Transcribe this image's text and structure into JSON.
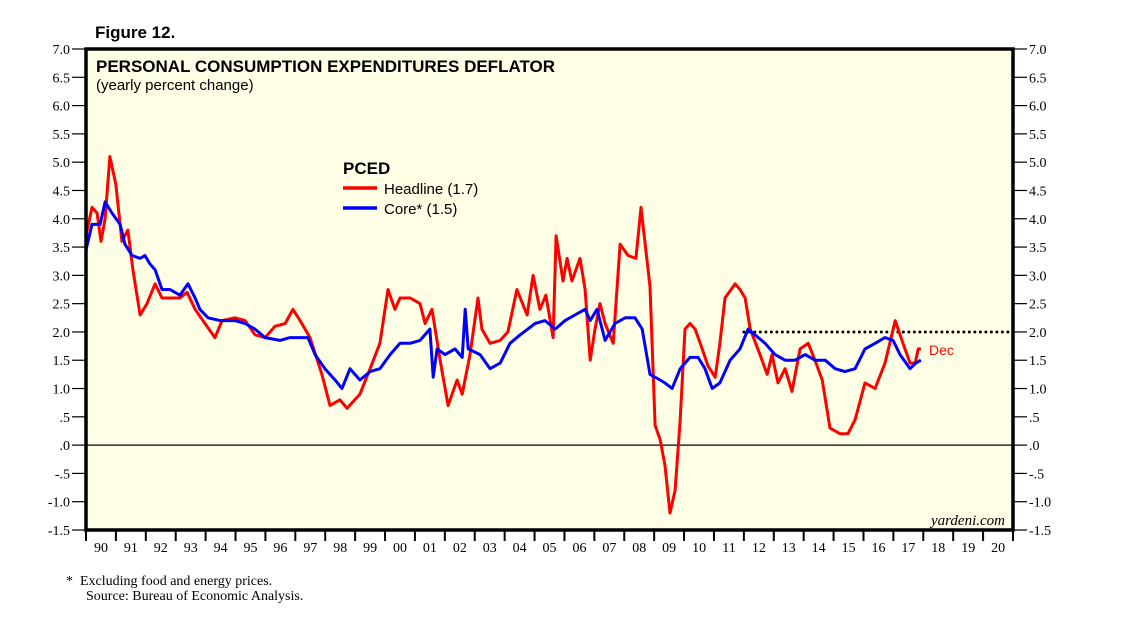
{
  "figure_label": "Figure 12.",
  "footnote": "*  Excluding food and energy prices.",
  "source": "Source: Bureau of Economic Analysis.",
  "watermark": "yardeni.com",
  "chart_data": {
    "type": "line",
    "title": "PERSONAL CONSUMPTION EXPENDITURES DEFLATOR",
    "subtitle": "(yearly percent change)",
    "legend_title": "PCED",
    "legend_placement": "upper-center",
    "background": "#FFFFE6",
    "xlim": [
      1990,
      2021
    ],
    "ylim": [
      -1.5,
      7.0
    ],
    "y_ticks": [
      7.0,
      6.5,
      6.0,
      5.5,
      5.0,
      4.5,
      4.0,
      3.5,
      3.0,
      2.5,
      2.0,
      1.5,
      1.0,
      0.5,
      0.0,
      -0.5,
      -1.0,
      -1.5
    ],
    "y_tick_labels": [
      "7.0",
      "6.5",
      "6.0",
      "5.5",
      "5.0",
      "4.5",
      "4.0",
      "3.5",
      "3.0",
      "2.5",
      "2.0",
      "1.5",
      "1.0",
      ".5",
      ".0",
      "-.5",
      "-1.0",
      "-1.5"
    ],
    "x_tick_labels": [
      "90",
      "91",
      "92",
      "93",
      "94",
      "95",
      "96",
      "97",
      "98",
      "99",
      "00",
      "01",
      "02",
      "03",
      "04",
      "05",
      "06",
      "07",
      "08",
      "09",
      "10",
      "11",
      "12",
      "13",
      "14",
      "15",
      "16",
      "17",
      "18",
      "19",
      "20"
    ],
    "reference_lines": [
      {
        "y": 0.0,
        "style": "solid",
        "color": "#000000"
      },
      {
        "y": 2.0,
        "x_start": 2012.0,
        "style": "dotted",
        "color": "#000000"
      }
    ],
    "end_annotation": "Dec",
    "series": [
      {
        "name": "Headline (1.7)",
        "color": "#FF0000",
        "x": [
          1990.0,
          1990.2,
          1990.37,
          1990.5,
          1990.64,
          1990.8,
          1991.0,
          1991.2,
          1991.4,
          1991.57,
          1991.81,
          1992.04,
          1992.31,
          1992.54,
          1992.91,
          1993.14,
          1993.38,
          1993.65,
          1993.98,
          1994.31,
          1994.55,
          1994.98,
          1995.32,
          1995.65,
          1995.99,
          1996.32,
          1996.66,
          1996.92,
          1997.16,
          1997.49,
          1997.89,
          1998.16,
          1998.49,
          1998.73,
          1999.16,
          1999.5,
          1999.83,
          2000.1,
          2000.33,
          2000.5,
          2000.84,
          2001.17,
          2001.34,
          2001.57,
          2001.84,
          2002.11,
          2002.41,
          2002.58,
          2002.84,
          2003.11,
          2003.24,
          2003.51,
          2003.85,
          2004.11,
          2004.41,
          2004.75,
          2004.95,
          2005.18,
          2005.38,
          2005.62,
          2005.72,
          2005.95,
          2006.09,
          2006.25,
          2006.52,
          2006.69,
          2006.86,
          2007.02,
          2007.19,
          2007.36,
          2007.63,
          2007.86,
          2008.13,
          2008.39,
          2008.56,
          2008.86,
          2009.03,
          2009.2,
          2009.36,
          2009.53,
          2009.7,
          2009.87,
          2010.03,
          2010.2,
          2010.37,
          2010.54,
          2010.8,
          2011.04,
          2011.2,
          2011.37,
          2011.71,
          2011.87,
          2012.04,
          2012.21,
          2012.54,
          2012.78,
          2012.94,
          2013.14,
          2013.38,
          2013.61,
          2013.88,
          2014.15,
          2014.38,
          2014.62,
          2014.88,
          2015.22,
          2015.48,
          2015.72,
          2016.05,
          2016.39,
          2016.72,
          2017.06,
          2017.32,
          2017.56,
          2017.73,
          2017.83,
          2017.92
        ],
        "y": [
          3.7,
          4.2,
          4.1,
          3.6,
          4.0,
          5.1,
          4.6,
          3.6,
          3.8,
          3.1,
          2.3,
          2.5,
          2.85,
          2.6,
          2.6,
          2.6,
          2.7,
          2.4,
          2.15,
          1.9,
          2.2,
          2.25,
          2.2,
          1.95,
          1.9,
          2.1,
          2.15,
          2.4,
          2.2,
          1.9,
          1.25,
          0.7,
          0.8,
          0.65,
          0.9,
          1.35,
          1.8,
          2.75,
          2.4,
          2.6,
          2.6,
          2.5,
          2.15,
          2.4,
          1.5,
          0.7,
          1.15,
          0.9,
          1.6,
          2.6,
          2.05,
          1.8,
          1.85,
          2.0,
          2.75,
          2.3,
          3.0,
          2.4,
          2.65,
          1.9,
          3.7,
          2.9,
          3.3,
          2.9,
          3.3,
          2.75,
          1.5,
          2.05,
          2.5,
          2.15,
          1.8,
          3.55,
          3.35,
          3.3,
          4.2,
          2.8,
          0.35,
          0.1,
          -0.35,
          -1.2,
          -0.8,
          0.45,
          2.05,
          2.15,
          2.05,
          1.8,
          1.4,
          1.2,
          1.8,
          2.6,
          2.85,
          2.75,
          2.6,
          2.05,
          1.6,
          1.25,
          1.6,
          1.1,
          1.35,
          0.95,
          1.7,
          1.8,
          1.5,
          1.15,
          0.3,
          0.2,
          0.2,
          0.45,
          1.1,
          1.0,
          1.45,
          2.2,
          1.8,
          1.45,
          1.45,
          1.7,
          1.7
        ]
      },
      {
        "name": "Core* (1.5)",
        "color": "#0000FF",
        "x": [
          1990.0,
          1990.2,
          1990.47,
          1990.64,
          1990.87,
          1991.14,
          1991.3,
          1991.54,
          1991.81,
          1991.97,
          1992.14,
          1992.31,
          1992.54,
          1992.81,
          1993.14,
          1993.41,
          1993.65,
          1993.81,
          1994.08,
          1994.48,
          1994.98,
          1995.32,
          1995.65,
          1995.99,
          1996.49,
          1996.82,
          1997.16,
          1997.42,
          1997.66,
          1997.99,
          1998.33,
          1998.56,
          1998.83,
          1999.16,
          1999.5,
          1999.83,
          2000.17,
          2000.5,
          2000.84,
          2001.17,
          2001.5,
          2001.61,
          2001.74,
          2002.01,
          2002.34,
          2002.58,
          2002.68,
          2002.78,
          2003.18,
          2003.51,
          2003.85,
          2004.18,
          2004.52,
          2005.02,
          2005.35,
          2005.69,
          2006.02,
          2006.35,
          2006.69,
          2006.86,
          2007.09,
          2007.36,
          2007.69,
          2008.03,
          2008.36,
          2008.6,
          2008.86,
          2009.2,
          2009.36,
          2009.6,
          2009.87,
          2010.2,
          2010.47,
          2010.7,
          2010.94,
          2011.2,
          2011.54,
          2011.87,
          2012.14,
          2012.37,
          2012.71,
          2013.04,
          2013.38,
          2013.71,
          2014.05,
          2014.38,
          2014.72,
          2015.05,
          2015.38,
          2015.72,
          2016.05,
          2016.39,
          2016.72,
          2016.99,
          2017.22,
          2017.56,
          2017.75,
          2017.92
        ],
        "y": [
          3.45,
          3.9,
          3.9,
          4.3,
          4.1,
          3.9,
          3.55,
          3.35,
          3.3,
          3.35,
          3.2,
          3.1,
          2.75,
          2.75,
          2.65,
          2.85,
          2.6,
          2.4,
          2.25,
          2.2,
          2.2,
          2.15,
          2.05,
          1.9,
          1.85,
          1.9,
          1.9,
          1.9,
          1.6,
          1.35,
          1.15,
          1.0,
          1.35,
          1.15,
          1.3,
          1.35,
          1.6,
          1.8,
          1.8,
          1.85,
          2.05,
          1.2,
          1.7,
          1.6,
          1.7,
          1.55,
          2.4,
          1.7,
          1.6,
          1.35,
          1.45,
          1.8,
          1.95,
          2.15,
          2.2,
          2.05,
          2.2,
          2.3,
          2.4,
          2.2,
          2.4,
          1.85,
          2.15,
          2.25,
          2.25,
          2.05,
          1.25,
          1.15,
          1.1,
          1.0,
          1.35,
          1.55,
          1.55,
          1.35,
          1.0,
          1.1,
          1.5,
          1.7,
          2.05,
          1.95,
          1.8,
          1.6,
          1.5,
          1.5,
          1.6,
          1.5,
          1.5,
          1.35,
          1.3,
          1.35,
          1.7,
          1.8,
          1.9,
          1.85,
          1.6,
          1.35,
          1.45,
          1.5
        ]
      }
    ]
  }
}
